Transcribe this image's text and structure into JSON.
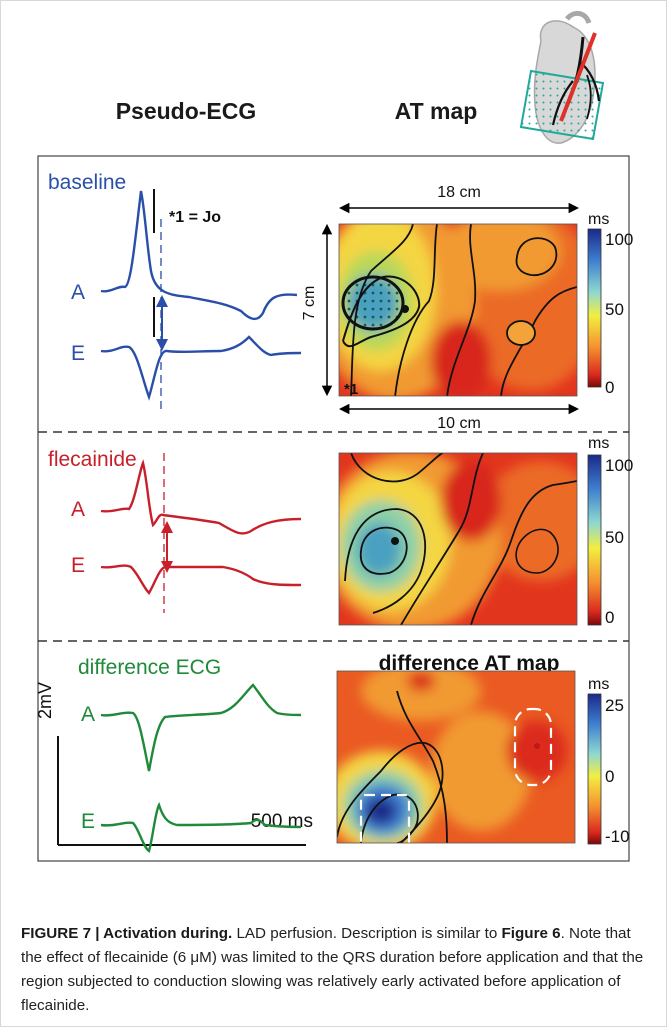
{
  "figure": {
    "headers": {
      "ecg": "Pseudo-ECG",
      "at": "AT map",
      "diff_at": "difference AT map"
    },
    "panels": {
      "baseline": {
        "label": "baseline",
        "marker": "*1 = Jo",
        "star_label": "*1"
      },
      "flecainide": {
        "label": "flecainide"
      },
      "difference": {
        "label": "difference ECG"
      }
    },
    "lead_labels": {
      "a": "A",
      "e": "E"
    },
    "dimensions": {
      "top_width": "18 cm",
      "height": "7 cm",
      "bottom_width": "10 cm"
    },
    "scale": {
      "voltage": "2mV",
      "time": "500 ms"
    },
    "colorbars": {
      "unit": "ms",
      "at_ticks": [
        "100",
        "50",
        "0"
      ],
      "diff_ticks": [
        "25",
        "0",
        "-10"
      ]
    },
    "colors": {
      "baseline": "#2a4fa8",
      "flecainide": "#c8202a",
      "difference": "#1f8a3a",
      "heart_marker": "#e0302a",
      "grid_teal": "#22a89a"
    }
  },
  "caption": {
    "label": "FIGURE 7 | Activation during.",
    "text_1": " LAD perfusion. Description is similar to ",
    "ref": "Figure 6",
    "text_2": ". Note that the effect of flecainide (6 μM) was limited to the QRS duration before application and that the region subjected to conduction slowing was relatively early activated before application of flecainide."
  }
}
